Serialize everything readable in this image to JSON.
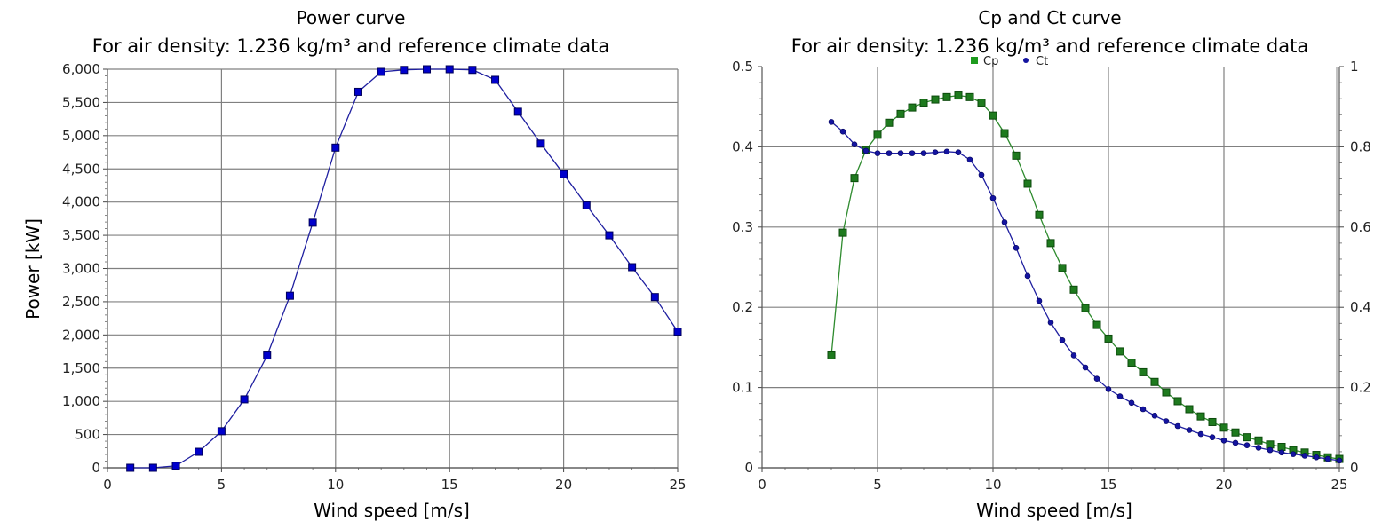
{
  "chart_data": [
    {
      "type": "line",
      "title": "Power curve",
      "subtitle": "For air density: 1.236 kg/m³ and reference climate data",
      "xlabel": "Wind speed [m/s]",
      "ylabel": "Power [kW]",
      "xlim": [
        0,
        25
      ],
      "ylim": [
        0,
        6000
      ],
      "x_ticks": [
        0,
        5,
        10,
        15,
        20,
        25
      ],
      "y_ticks": [
        0,
        500,
        1000,
        1500,
        2000,
        2500,
        3000,
        3500,
        4000,
        4500,
        5000,
        5500,
        6000
      ],
      "y_tick_labels": [
        "0",
        "500",
        "1,000",
        "1,500",
        "2,000",
        "2,500",
        "3,000",
        "3,500",
        "4,000",
        "4,500",
        "5,000",
        "5,500",
        "6,000"
      ],
      "grid": true,
      "colors": {
        "line": "#1f1fa0",
        "marker": "#0000cc",
        "grid": "#808080"
      },
      "series": [
        {
          "x": [
            1,
            2,
            3,
            4,
            5,
            6,
            7,
            8,
            9,
            10,
            11,
            12,
            13,
            14,
            15,
            16,
            17,
            18,
            19,
            20,
            21,
            22,
            23,
            24,
            25
          ],
          "values": [
            0,
            0,
            30,
            240,
            550,
            1030,
            1690,
            2590,
            3690,
            4820,
            5660,
            5960,
            5990,
            6000,
            6000,
            5990,
            5840,
            5360,
            4880,
            4420,
            3950,
            3500,
            3020,
            2570,
            2050
          ]
        }
      ]
    },
    {
      "type": "line",
      "title": "Cp and Ct curve",
      "subtitle": "For air density: 1.236 kg/m³ and reference climate data",
      "xlabel": "Wind speed [m/s]",
      "xlim": [
        0,
        25
      ],
      "ylim": [
        0,
        0.5
      ],
      "y2lim": [
        0,
        1
      ],
      "x_ticks": [
        0,
        5,
        10,
        15,
        20,
        25
      ],
      "y_ticks": [
        0,
        0.1,
        0.2,
        0.3,
        0.4,
        0.5
      ],
      "y_tick_labels": [
        "0",
        "0.1",
        "0.2",
        "0.3",
        "0.4",
        "0.5"
      ],
      "y2_ticks": [
        0,
        0.2,
        0.4,
        0.6,
        0.8,
        1
      ],
      "y2_tick_labels": [
        "0",
        "0.2",
        "0.4",
        "0.6",
        "0.8",
        "1"
      ],
      "grid": true,
      "legend_position": "top-center",
      "colors": {
        "grid": "#808080"
      },
      "series": [
        {
          "name": "Cp",
          "axis": "left",
          "color": "#2e8b2e",
          "marker_color": "#1e7a1e",
          "x": [
            3,
            3.5,
            4,
            4.5,
            5,
            5.5,
            6,
            6.5,
            7,
            7.5,
            8,
            8.5,
            9,
            9.5,
            10,
            10.5,
            11,
            11.5,
            12,
            12.5,
            13,
            13.5,
            14,
            14.5,
            15,
            15.5,
            16,
            16.5,
            17,
            17.5,
            18,
            18.5,
            19,
            19.5,
            20,
            20.5,
            21,
            21.5,
            22,
            22.5,
            23,
            23.5,
            24,
            24.5,
            25
          ],
          "values": [
            0.14,
            0.293,
            0.361,
            0.396,
            0.415,
            0.43,
            0.441,
            0.449,
            0.455,
            0.459,
            0.462,
            0.464,
            0.462,
            0.455,
            0.439,
            0.417,
            0.389,
            0.354,
            0.315,
            0.28,
            0.249,
            0.222,
            0.199,
            0.178,
            0.161,
            0.145,
            0.131,
            0.119,
            0.107,
            0.094,
            0.083,
            0.073,
            0.064,
            0.057,
            0.05,
            0.044,
            0.038,
            0.034,
            0.029,
            0.026,
            0.022,
            0.019,
            0.016,
            0.013,
            0.011
          ]
        },
        {
          "name": "Ct",
          "axis": "right",
          "color": "#1f1fa0",
          "marker_color": "#1414a0",
          "x": [
            3,
            3.5,
            4,
            4.5,
            5,
            5.5,
            6,
            6.5,
            7,
            7.5,
            8,
            8.5,
            9,
            9.5,
            10,
            10.5,
            11,
            11.5,
            12,
            12.5,
            13,
            13.5,
            14,
            14.5,
            15,
            15.5,
            16,
            16.5,
            17,
            17.5,
            18,
            18.5,
            19,
            19.5,
            20,
            20.5,
            21,
            21.5,
            22,
            22.5,
            23,
            23.5,
            24,
            24.5,
            25
          ],
          "values": [
            0.862,
            0.838,
            0.806,
            0.79,
            0.784,
            0.784,
            0.784,
            0.784,
            0.784,
            0.786,
            0.788,
            0.786,
            0.768,
            0.73,
            0.672,
            0.612,
            0.548,
            0.478,
            0.416,
            0.362,
            0.318,
            0.28,
            0.25,
            0.222,
            0.196,
            0.178,
            0.162,
            0.146,
            0.13,
            0.116,
            0.104,
            0.094,
            0.084,
            0.076,
            0.068,
            0.062,
            0.056,
            0.05,
            0.044,
            0.038,
            0.034,
            0.03,
            0.026,
            0.022,
            0.018
          ]
        }
      ]
    }
  ]
}
